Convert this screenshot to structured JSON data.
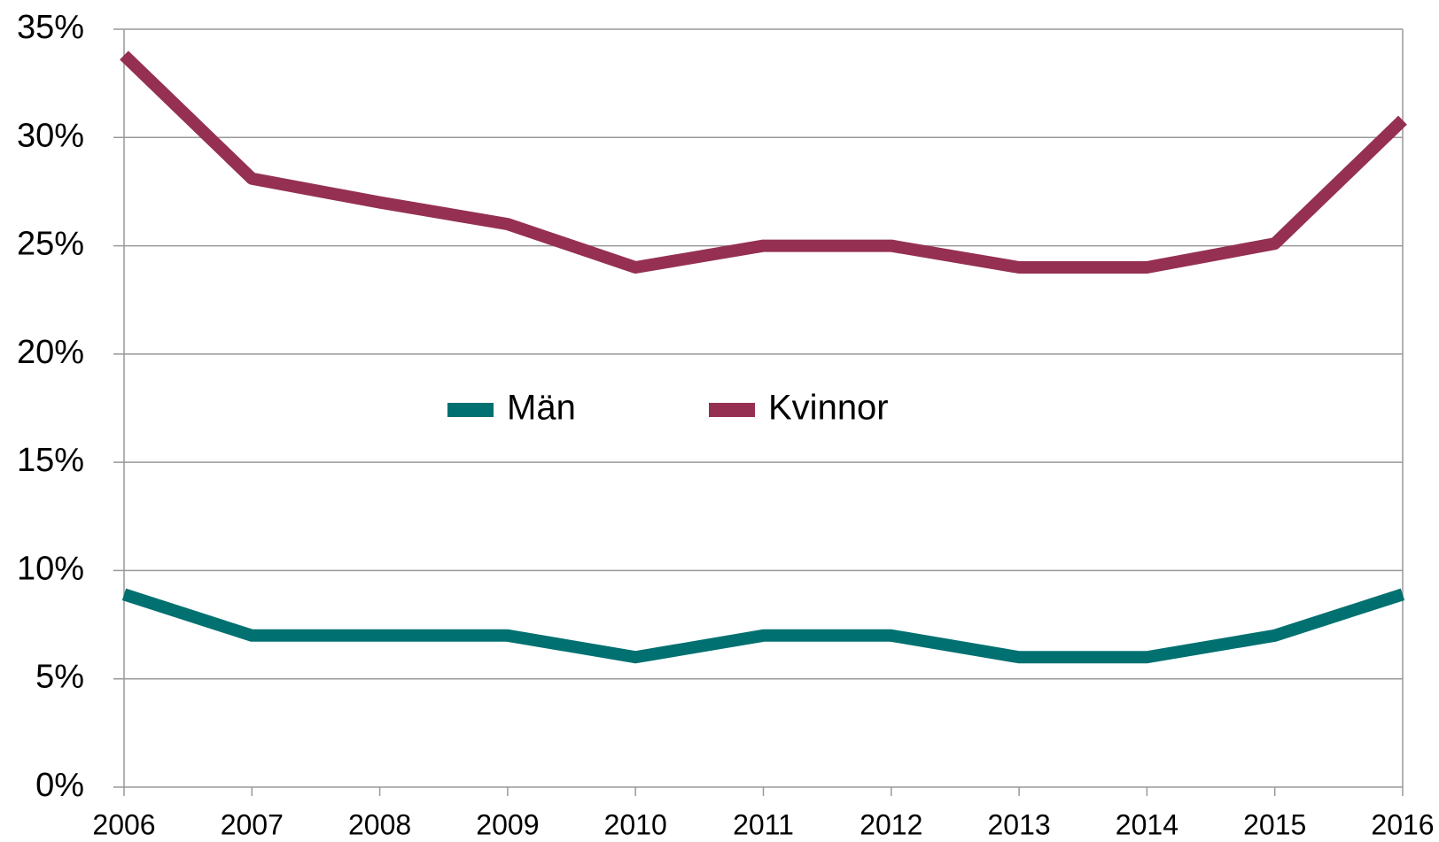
{
  "chart_data": {
    "type": "line",
    "x": [
      2006,
      2007,
      2008,
      2009,
      2010,
      2011,
      2012,
      2013,
      2014,
      2015,
      2016
    ],
    "series": [
      {
        "name": "Män",
        "color": "#007070",
        "values": [
          8.9,
          7,
          7,
          7,
          6,
          7,
          7,
          6,
          6,
          7,
          8.9
        ]
      },
      {
        "name": "Kvinnor",
        "color": "#953053",
        "values": [
          33.8,
          28.1,
          27,
          26,
          24,
          25,
          25,
          24,
          24,
          25.1,
          30.8
        ]
      }
    ],
    "xlim": [
      2006,
      2016
    ],
    "xticks": [
      2006,
      2007,
      2008,
      2009,
      2010,
      2011,
      2012,
      2013,
      2014,
      2015,
      2016
    ],
    "ylim": [
      0,
      35
    ],
    "yticks": [
      {
        "value": 0,
        "label": "0%"
      },
      {
        "value": 5,
        "label": "5%"
      },
      {
        "value": 10,
        "label": "10%"
      },
      {
        "value": 15,
        "label": "15%"
      },
      {
        "value": 20,
        "label": "20%"
      },
      {
        "value": 25,
        "label": "25%"
      },
      {
        "value": 30,
        "label": "30%"
      },
      {
        "value": 35,
        "label": "35%"
      }
    ],
    "grid": true,
    "legend": "center"
  }
}
